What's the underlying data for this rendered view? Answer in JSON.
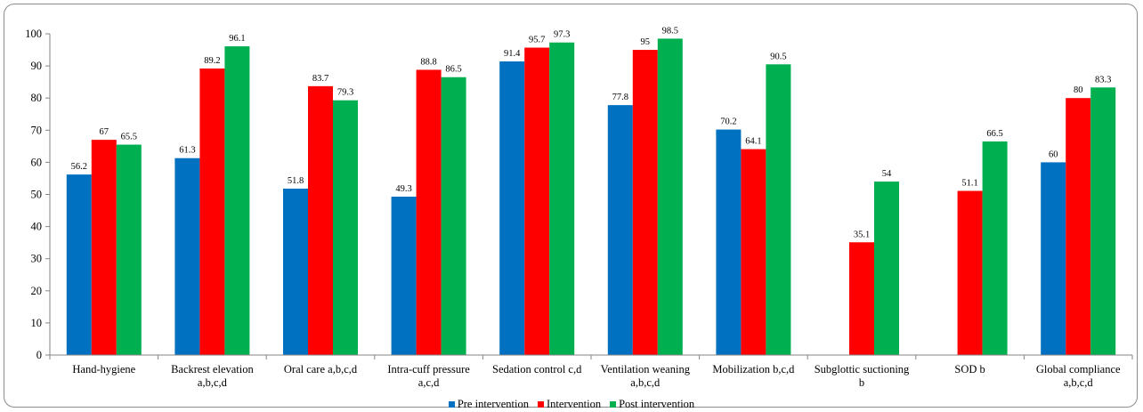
{
  "chart_data": {
    "type": "bar",
    "title": "",
    "xlabel": "",
    "ylabel": "",
    "ylim": [
      0,
      100
    ],
    "yticks": [
      0,
      10,
      20,
      30,
      40,
      50,
      60,
      70,
      80,
      90,
      100
    ],
    "grid": false,
    "legend_position": "bottom",
    "categories": [
      [
        "Hand-hygiene"
      ],
      [
        "Backrest elevation",
        "a,b,c,d"
      ],
      [
        "Oral care a,b,c,d"
      ],
      [
        "Intra-cuff pressure",
        "a,c,d"
      ],
      [
        "Sedation control c,d"
      ],
      [
        "Ventilation weaning",
        "a,b,c,d"
      ],
      [
        "Mobilization b,c,d"
      ],
      [
        "Subglottic suctioning",
        "b"
      ],
      [
        "SOD b"
      ],
      [
        "Global compliance",
        "a,b,c,d"
      ]
    ],
    "series": [
      {
        "name": "Pre intervention",
        "color": "#0070c0",
        "values": [
          56.2,
          61.3,
          51.8,
          49.3,
          91.4,
          77.8,
          70.2,
          null,
          null,
          60
        ]
      },
      {
        "name": "Intervention",
        "color": "#ff0000",
        "values": [
          67,
          89.2,
          83.7,
          88.8,
          95.7,
          95,
          64.1,
          35.1,
          51.1,
          80
        ]
      },
      {
        "name": "Post intervention",
        "color": "#00b050",
        "values": [
          65.5,
          96.1,
          79.3,
          86.5,
          97.3,
          98.5,
          90.5,
          54,
          66.5,
          83.3
        ]
      }
    ]
  }
}
